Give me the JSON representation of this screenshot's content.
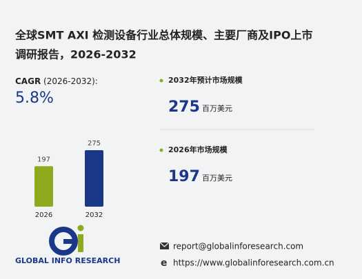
{
  "header": {
    "title_line1": "全球SMT AXI 检测设备行业总体规模、主要厂商及IPO上市",
    "title_line2": "调研报告，2026-2032"
  },
  "cagr": {
    "label": "CAGR",
    "period": "(2026-2032):",
    "value": "5.8%"
  },
  "stats": [
    {
      "label": "2032年预计市场规模",
      "value": "275",
      "unit": "百万美元"
    },
    {
      "label": "2026年市场规模",
      "value": "197",
      "unit": "百万美元"
    }
  ],
  "chart_data": {
    "type": "bar",
    "categories": [
      "2026",
      "2032"
    ],
    "values": [
      197,
      275
    ],
    "colors": [
      "#8eab1f",
      "#1b3787"
    ]
  },
  "brand": {
    "name": "GLOBAL INFO RESEARCH"
  },
  "contact": {
    "email": "report@globalinforesearch.com",
    "website": "https://www.globalinforesearch.com.cn"
  }
}
